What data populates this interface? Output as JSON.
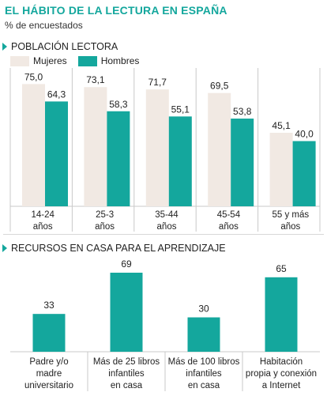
{
  "title": "EL HÁBITO DE LA LECTURA EN ESPAÑA",
  "subtitle": "% de encuestados",
  "colors": {
    "mujeres": "#f1e9e3",
    "hombres": "#14a79d",
    "accent": "#14a79d",
    "grid": "#c9c9c9"
  },
  "chart_data": [
    {
      "type": "bar",
      "title": "POBLACIÓN LECTORA",
      "categories": [
        [
          "14-24",
          "años"
        ],
        [
          "25-3",
          "años"
        ],
        [
          "35-44",
          "años"
        ],
        [
          "45-54",
          "años"
        ],
        [
          "55 y más",
          "años"
        ]
      ],
      "series": [
        {
          "name": "Mujeres",
          "values": [
            75.0,
            73.1,
            71.7,
            69.5,
            45.1
          ],
          "labels": [
            "75,0",
            "73,1",
            "71,7",
            "69,5",
            "45,1"
          ]
        },
        {
          "name": "Hombres",
          "values": [
            64.3,
            58.3,
            55.1,
            53.8,
            40.0
          ],
          "labels": [
            "64,3",
            "58,3",
            "55,1",
            "53,8",
            "40,0"
          ]
        }
      ],
      "ylim": [
        0,
        80
      ],
      "legend": "top-left"
    },
    {
      "type": "bar",
      "title": "RECURSOS EN CASA PARA EL APRENDIZAJE",
      "categories": [
        [
          "Padre y/o",
          "madre",
          "universitario"
        ],
        [
          "Más de 25 libros",
          "infantiles",
          "en casa"
        ],
        [
          "Más de 100 libros",
          "infantiles",
          "en casa"
        ],
        [
          "Habitación",
          "propia y conexión",
          "a Internet"
        ]
      ],
      "values": [
        33,
        69,
        30,
        65
      ],
      "labels": [
        "33",
        "69",
        "30",
        "65"
      ],
      "ylim": [
        0,
        75
      ]
    }
  ]
}
